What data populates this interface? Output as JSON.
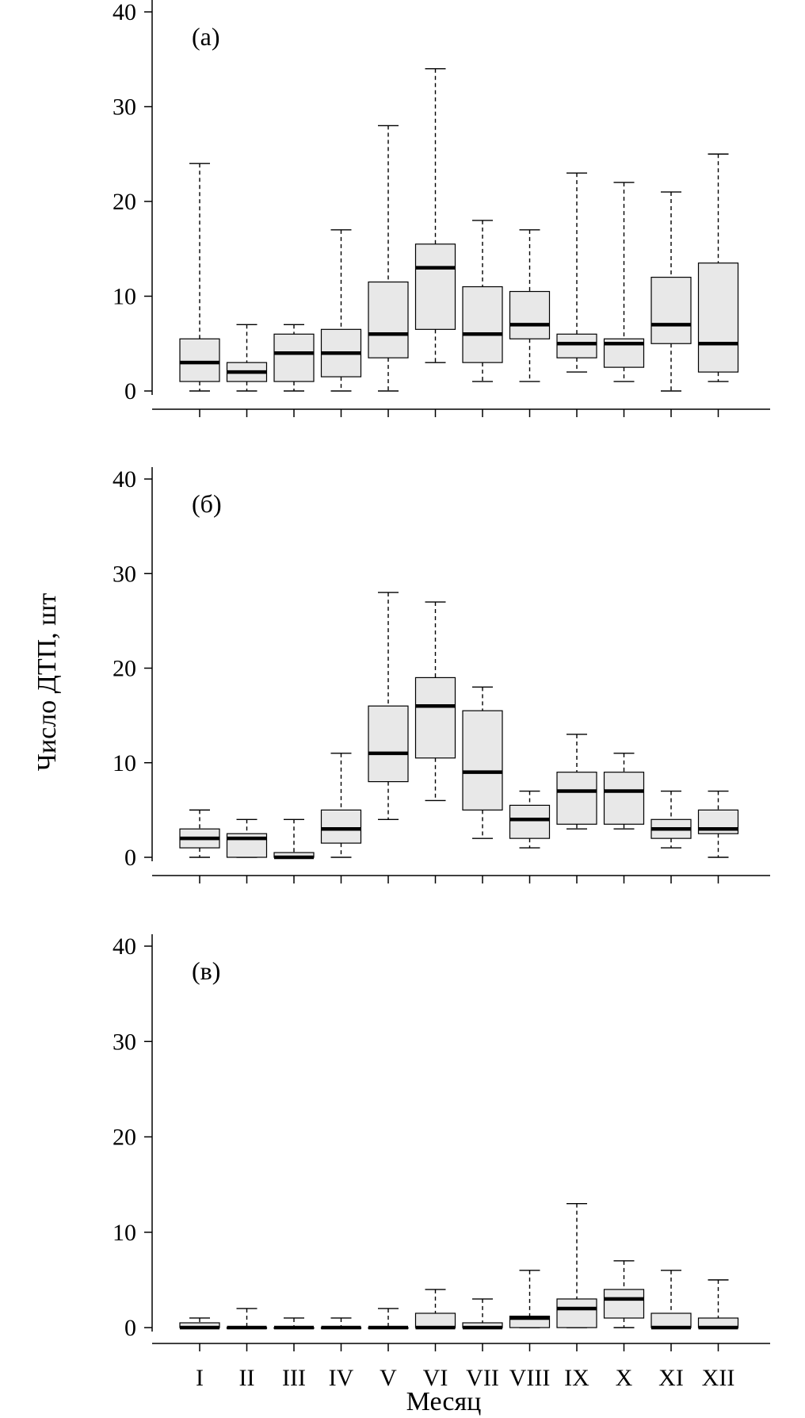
{
  "chart_data": {
    "type": "boxplot",
    "ylabel": "Число ДТП, шт",
    "xlabel": "Месяц",
    "categories": [
      "I",
      "II",
      "III",
      "IV",
      "V",
      "VI",
      "VII",
      "VIII",
      "IX",
      "X",
      "XI",
      "XII"
    ],
    "ylim": [
      0,
      40
    ],
    "yticks": [
      0,
      10,
      20,
      30,
      40
    ],
    "panels": [
      {
        "label": "(a)",
        "boxes": [
          {
            "min": 0,
            "q1": 1,
            "median": 3,
            "q3": 5.5,
            "max": 24
          },
          {
            "min": 0,
            "q1": 1,
            "median": 2,
            "q3": 3,
            "max": 7
          },
          {
            "min": 0,
            "q1": 1,
            "median": 4,
            "q3": 6,
            "max": 7
          },
          {
            "min": 0,
            "q1": 1.5,
            "median": 4,
            "q3": 6.5,
            "max": 17
          },
          {
            "min": 0,
            "q1": 3.5,
            "median": 6,
            "q3": 11.5,
            "max": 28
          },
          {
            "min": 3,
            "q1": 6.5,
            "median": 13,
            "q3": 15.5,
            "max": 34
          },
          {
            "min": 1,
            "q1": 3,
            "median": 6,
            "q3": 11,
            "max": 18
          },
          {
            "min": 1,
            "q1": 5.5,
            "median": 7,
            "q3": 10.5,
            "max": 17
          },
          {
            "min": 2,
            "q1": 3.5,
            "median": 5,
            "q3": 6,
            "max": 23
          },
          {
            "min": 1,
            "q1": 2.5,
            "median": 5,
            "q3": 5.5,
            "max": 22
          },
          {
            "min": 0,
            "q1": 5,
            "median": 7,
            "q3": 12,
            "max": 21
          },
          {
            "min": 1,
            "q1": 2,
            "median": 5,
            "q3": 13.5,
            "max": 25
          }
        ]
      },
      {
        "label": "(б)",
        "boxes": [
          {
            "min": 0,
            "q1": 1,
            "median": 2,
            "q3": 3,
            "max": 5
          },
          {
            "min": 0,
            "q1": 0,
            "median": 2,
            "q3": 2.5,
            "max": 4
          },
          {
            "min": 0,
            "q1": 0,
            "median": 0,
            "q3": 0.5,
            "max": 4
          },
          {
            "min": 0,
            "q1": 1.5,
            "median": 3,
            "q3": 5,
            "max": 11
          },
          {
            "min": 4,
            "q1": 8,
            "median": 11,
            "q3": 16,
            "max": 28
          },
          {
            "min": 6,
            "q1": 10.5,
            "median": 16,
            "q3": 19,
            "max": 27
          },
          {
            "min": 2,
            "q1": 5,
            "median": 9,
            "q3": 15.5,
            "max": 18
          },
          {
            "min": 1,
            "q1": 2,
            "median": 4,
            "q3": 5.5,
            "max": 7
          },
          {
            "min": 3,
            "q1": 3.5,
            "median": 7,
            "q3": 9,
            "max": 13
          },
          {
            "min": 3,
            "q1": 3.5,
            "median": 7,
            "q3": 9,
            "max": 11
          },
          {
            "min": 1,
            "q1": 2,
            "median": 3,
            "q3": 4,
            "max": 7
          },
          {
            "min": 0,
            "q1": 2.5,
            "median": 3,
            "q3": 5,
            "max": 7
          }
        ]
      },
      {
        "label": "(в)",
        "boxes": [
          {
            "min": 0,
            "q1": 0,
            "median": 0,
            "q3": 0.5,
            "max": 1
          },
          {
            "min": 0,
            "q1": 0,
            "median": 0,
            "q3": 0,
            "max": 2
          },
          {
            "min": 0,
            "q1": 0,
            "median": 0,
            "q3": 0,
            "max": 1
          },
          {
            "min": 0,
            "q1": 0,
            "median": 0,
            "q3": 0,
            "max": 1
          },
          {
            "min": 0,
            "q1": 0,
            "median": 0,
            "q3": 0,
            "max": 2
          },
          {
            "min": 0,
            "q1": 0,
            "median": 0,
            "q3": 1.5,
            "max": 4
          },
          {
            "min": 0,
            "q1": 0,
            "median": 0,
            "q3": 0.5,
            "max": 3
          },
          {
            "min": 0,
            "q1": 0,
            "median": 1,
            "q3": 1.2,
            "max": 6
          },
          {
            "min": 0,
            "q1": 0,
            "median": 2,
            "q3": 3,
            "max": 13
          },
          {
            "min": 0,
            "q1": 1,
            "median": 3,
            "q3": 4,
            "max": 7
          },
          {
            "min": 0,
            "q1": 0,
            "median": 0,
            "q3": 1.5,
            "max": 6
          },
          {
            "min": 0,
            "q1": 0,
            "median": 0,
            "q3": 1,
            "max": 5
          }
        ]
      }
    ]
  }
}
